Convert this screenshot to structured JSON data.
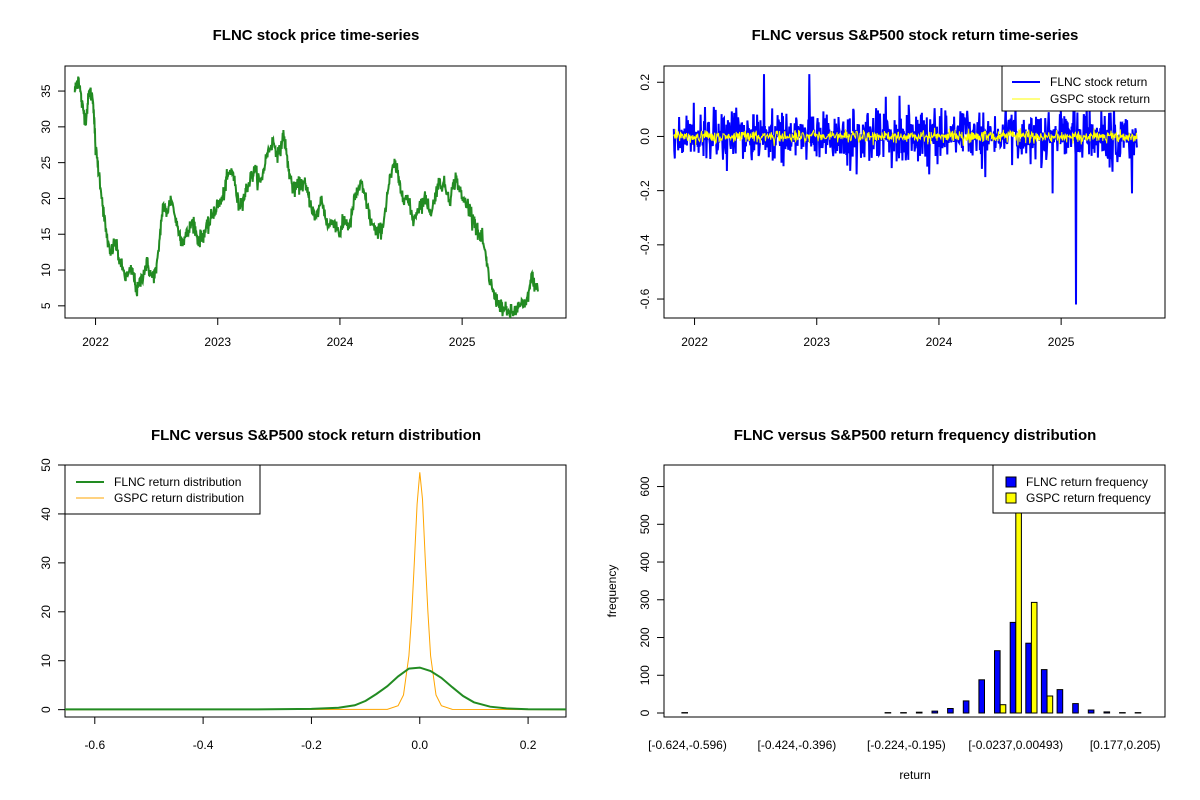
{
  "colors": {
    "flnc_price": "#228B22",
    "flnc_return": "#0000FF",
    "gspc_return": "#FFFF00",
    "flnc_density": "#228B22",
    "gspc_density": "#FFA500"
  },
  "chart_data": [
    {
      "type": "line",
      "title": "FLNC stock price time-series",
      "xlabel": "",
      "ylabel": "",
      "xlim": [
        2021.75,
        2025.85
      ],
      "ylim": [
        3.3,
        38.5
      ],
      "x_ticks": [
        "2022",
        "2023",
        "2024",
        "2025"
      ],
      "y_ticks": [
        "5",
        "10",
        "15",
        "20",
        "25",
        "30",
        "35"
      ],
      "series": [
        {
          "x": [
            2021.83,
            2021.86,
            2021.89,
            2021.92,
            2021.95,
            2021.98,
            2022.0,
            2022.04,
            2022.08,
            2022.12,
            2022.16,
            2022.2,
            2022.25,
            2022.3,
            2022.34,
            2022.38,
            2022.42,
            2022.46,
            2022.5,
            2022.55,
            2022.58,
            2022.62,
            2022.67,
            2022.71,
            2022.75,
            2022.8,
            2022.84,
            2022.88,
            2022.92,
            2022.96,
            2023.0,
            2023.04,
            2023.08,
            2023.12,
            2023.17,
            2023.21,
            2023.25,
            2023.3,
            2023.35,
            2023.4,
            2023.45,
            2023.5,
            2023.54,
            2023.58,
            2023.62,
            2023.67,
            2023.71,
            2023.75,
            2023.8,
            2023.85,
            2023.9,
            2023.95,
            2024.0,
            2024.04,
            2024.08,
            2024.12,
            2024.17,
            2024.21,
            2024.25,
            2024.3,
            2024.35,
            2024.4,
            2024.45,
            2024.5,
            2024.55,
            2024.6,
            2024.65,
            2024.7,
            2024.75,
            2024.8,
            2024.85,
            2024.9,
            2024.95,
            2025.0,
            2025.05,
            2025.1,
            2025.13,
            2025.17,
            2025.22,
            2025.27,
            2025.32,
            2025.37,
            2025.42,
            2025.47,
            2025.52,
            2025.57,
            2025.62
          ],
          "y": [
            35,
            37,
            33,
            31,
            35,
            34,
            27,
            22,
            16,
            12,
            14,
            11,
            9,
            10,
            7,
            9,
            11,
            9,
            10,
            19,
            18,
            20,
            16,
            14,
            15,
            17,
            14,
            15,
            16,
            18,
            19,
            20,
            23,
            24,
            19,
            20,
            22,
            24,
            22,
            26,
            28,
            26,
            29,
            24,
            21,
            22,
            22,
            20,
            17,
            20,
            16,
            17,
            15,
            17,
            16,
            20,
            22,
            20,
            17,
            15,
            16,
            22,
            25,
            21,
            20,
            17,
            19,
            20,
            18,
            22,
            22,
            20,
            23,
            20,
            19,
            17,
            15,
            14,
            9,
            6,
            5,
            4,
            4,
            5,
            5,
            9,
            7
          ]
        }
      ]
    },
    {
      "type": "line",
      "title": "FLNC versus S&P500 stock return time-series",
      "xlabel": "",
      "ylabel": "",
      "xlim": [
        2021.75,
        2025.85
      ],
      "ylim": [
        -0.67,
        0.26
      ],
      "x_ticks": [
        "2022",
        "2023",
        "2024",
        "2025"
      ],
      "y_ticks": [
        "-0.6",
        "-0.4",
        "-0.2",
        "0.0",
        "0.2"
      ],
      "legend": [
        "FLNC stock return",
        "GSPC stock return"
      ],
      "legend_position": "top-right",
      "series": [
        {
          "name": "FLNC stock return",
          "x_range": [
            2021.83,
            2025.62
          ],
          "typical_range": [
            -0.1,
            0.1
          ],
          "notable_points": [
            [
              2022.57,
              0.23
            ],
            [
              2022.94,
              0.23
            ],
            [
              2023.92,
              -0.14
            ],
            [
              2024.38,
              -0.15
            ],
            [
              2024.93,
              -0.21
            ],
            [
              2025.12,
              -0.62
            ],
            [
              2025.42,
              -0.13
            ],
            [
              2025.58,
              -0.21
            ]
          ]
        },
        {
          "name": "GSPC stock return",
          "x_range": [
            2021.83,
            2025.62
          ],
          "typical_range": [
            -0.03,
            0.03
          ]
        }
      ]
    },
    {
      "type": "line",
      "title": "FLNC versus S&P500 stock return distribution",
      "xlabel": "",
      "ylabel": "",
      "xlim": [
        -0.655,
        0.27
      ],
      "ylim": [
        -1.5,
        50
      ],
      "x_ticks": [
        "-0.6",
        "-0.4",
        "-0.2",
        "0.0",
        "0.2"
      ],
      "y_ticks": [
        "0",
        "10",
        "20",
        "30",
        "40",
        "50"
      ],
      "legend": [
        "FLNC return distribution",
        "GSPC return distribution"
      ],
      "legend_position": "top-left",
      "series": [
        {
          "name": "FLNC return distribution",
          "x": [
            -0.655,
            -0.3,
            -0.2,
            -0.15,
            -0.12,
            -0.1,
            -0.08,
            -0.06,
            -0.04,
            -0.02,
            0.0,
            0.02,
            0.04,
            0.06,
            0.08,
            0.1,
            0.13,
            0.16,
            0.2,
            0.27
          ],
          "y": [
            0.05,
            0.05,
            0.15,
            0.4,
            0.9,
            1.8,
            3.2,
            4.8,
            6.8,
            8.4,
            8.6,
            7.9,
            6.5,
            4.6,
            2.8,
            1.5,
            0.6,
            0.25,
            0.1,
            0.05
          ]
        },
        {
          "name": "GSPC return distribution",
          "x": [
            -0.655,
            -0.06,
            -0.04,
            -0.03,
            -0.02,
            -0.015,
            -0.01,
            -0.005,
            0.0,
            0.005,
            0.01,
            0.015,
            0.02,
            0.03,
            0.04,
            0.06,
            0.27
          ],
          "y": [
            0,
            0.05,
            0.8,
            3,
            11,
            19,
            30,
            42,
            48.5,
            43,
            31,
            20,
            11,
            3,
            0.8,
            0.05,
            0
          ]
        }
      ]
    },
    {
      "type": "bar",
      "title": "FLNC versus S&P500 return frequency distribution",
      "xlabel": "return",
      "ylabel": "frequency",
      "ylim": [
        0,
        620
      ],
      "x_ticks": [
        "[-0.624,-0.596)",
        "[-0.424,-0.396)",
        "[-0.224,-0.195)",
        "[-0.0237,0.00493)",
        "[0.177,0.205)"
      ],
      "y_ticks": [
        "0",
        "100",
        "200",
        "300",
        "400",
        "500",
        "600"
      ],
      "legend": [
        "FLNC return frequency",
        "GSPC return frequency"
      ],
      "legend_position": "top-right",
      "bin_count": 30,
      "series": [
        {
          "name": "FLNC return frequency",
          "values": [
            1,
            0,
            0,
            0,
            0,
            0,
            0,
            0,
            0,
            0,
            0,
            0,
            0,
            1,
            1,
            2,
            5,
            12,
            32,
            88,
            165,
            240,
            185,
            115,
            62,
            25,
            8,
            3,
            1,
            1
          ]
        },
        {
          "name": "GSPC return frequency",
          "values": [
            0,
            0,
            0,
            0,
            0,
            0,
            0,
            0,
            0,
            0,
            0,
            0,
            0,
            0,
            0,
            0,
            0,
            0,
            0,
            0,
            22,
            560,
            293,
            45,
            0,
            0,
            0,
            0,
            0,
            0
          ]
        }
      ]
    }
  ]
}
